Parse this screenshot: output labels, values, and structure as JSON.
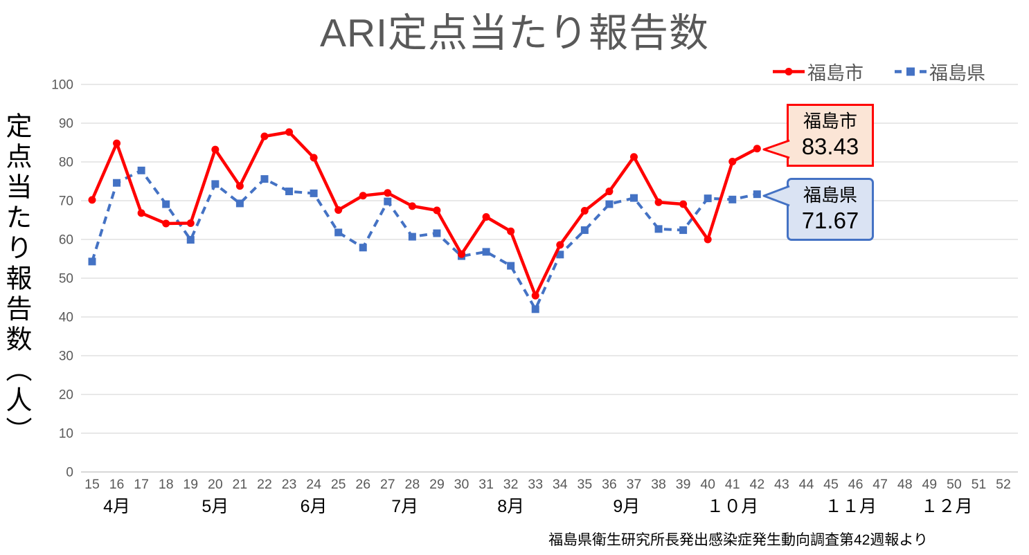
{
  "title": "ARI定点当たり報告数",
  "colors": {
    "grid": "#D9D9D9",
    "axis_line": "#BFBFBF",
    "axis_text": "#595959",
    "month_text": "#000000",
    "title_text": "#595959",
    "legend_text": "#595959",
    "source_text": "#000000",
    "background": "#FFFFFF"
  },
  "y_axis": {
    "title": "定点当たり報告数（人）",
    "min": 0,
    "max": 100,
    "ticks": [
      0,
      10,
      20,
      30,
      40,
      50,
      60,
      70,
      80,
      90,
      100
    ]
  },
  "x_axis": {
    "weeks": [
      15,
      16,
      17,
      18,
      19,
      20,
      21,
      22,
      23,
      24,
      25,
      26,
      27,
      28,
      29,
      30,
      31,
      32,
      33,
      34,
      35,
      36,
      37,
      38,
      39,
      40,
      41,
      42,
      43,
      44,
      45,
      46,
      47,
      48,
      49,
      50,
      51,
      52
    ],
    "months": [
      {
        "label": "4月",
        "week": 16.0
      },
      {
        "label": "5月",
        "week": 20.0
      },
      {
        "label": "6月",
        "week": 24.0
      },
      {
        "label": "7月",
        "week": 27.7
      },
      {
        "label": "8月",
        "week": 32.0
      },
      {
        "label": "9月",
        "week": 36.7
      },
      {
        "label": "１０月",
        "week": 41.0
      },
      {
        "label": "１１月",
        "week": 45.8
      },
      {
        "label": "１２月",
        "week": 49.7
      }
    ]
  },
  "callouts": [
    {
      "label": "福島市",
      "value": "83.43",
      "fill": "#FBE5D6",
      "border": "#FF0000"
    },
    {
      "label": "福島県",
      "value": "71.67",
      "fill": "#DAE3F3",
      "border": "#4472C4"
    }
  ],
  "source": "福島県衛生研究所長発出感染症発生動向調査第42週報より",
  "chart_data": {
    "type": "line",
    "title": "ARI定点当たり報告数",
    "xlabel": "",
    "ylabel": "定点当たり報告数（人）",
    "ylim": [
      0,
      100
    ],
    "x_axis_weeks_shown": [
      15,
      52
    ],
    "grid": true,
    "legend_position": "top-right",
    "x_weeks": [
      15,
      16,
      17,
      18,
      19,
      20,
      21,
      22,
      23,
      24,
      25,
      26,
      27,
      28,
      29,
      30,
      31,
      32,
      33,
      34,
      35,
      36,
      37,
      38,
      39,
      40,
      41,
      42
    ],
    "series": [
      {
        "name": "福島市",
        "color": "#FF0000",
        "line_style": "solid",
        "marker": "circle",
        "values": [
          70.2,
          84.8,
          66.8,
          64.1,
          64.2,
          83.2,
          73.8,
          86.6,
          87.7,
          81.1,
          67.6,
          71.3,
          72.0,
          68.6,
          67.5,
          56.2,
          65.8,
          62.1,
          45.5,
          58.6,
          67.4,
          72.4,
          81.3,
          69.6,
          69.1,
          60.0,
          80.1,
          83.43
        ]
      },
      {
        "name": "福島県",
        "color": "#4472C4",
        "line_style": "dashed",
        "marker": "square",
        "values": [
          54.3,
          74.6,
          77.8,
          69.1,
          59.9,
          74.3,
          69.3,
          75.6,
          72.4,
          71.9,
          61.8,
          57.9,
          69.8,
          60.7,
          61.6,
          55.7,
          56.8,
          53.2,
          42.0,
          56.1,
          62.4,
          69.1,
          70.7,
          62.7,
          62.4,
          70.6,
          70.3,
          71.67
        ]
      }
    ],
    "final_value_labels": [
      {
        "series": "福島市",
        "week": 42,
        "value": 83.43
      },
      {
        "series": "福島県",
        "week": 42,
        "value": 71.67
      }
    ]
  }
}
